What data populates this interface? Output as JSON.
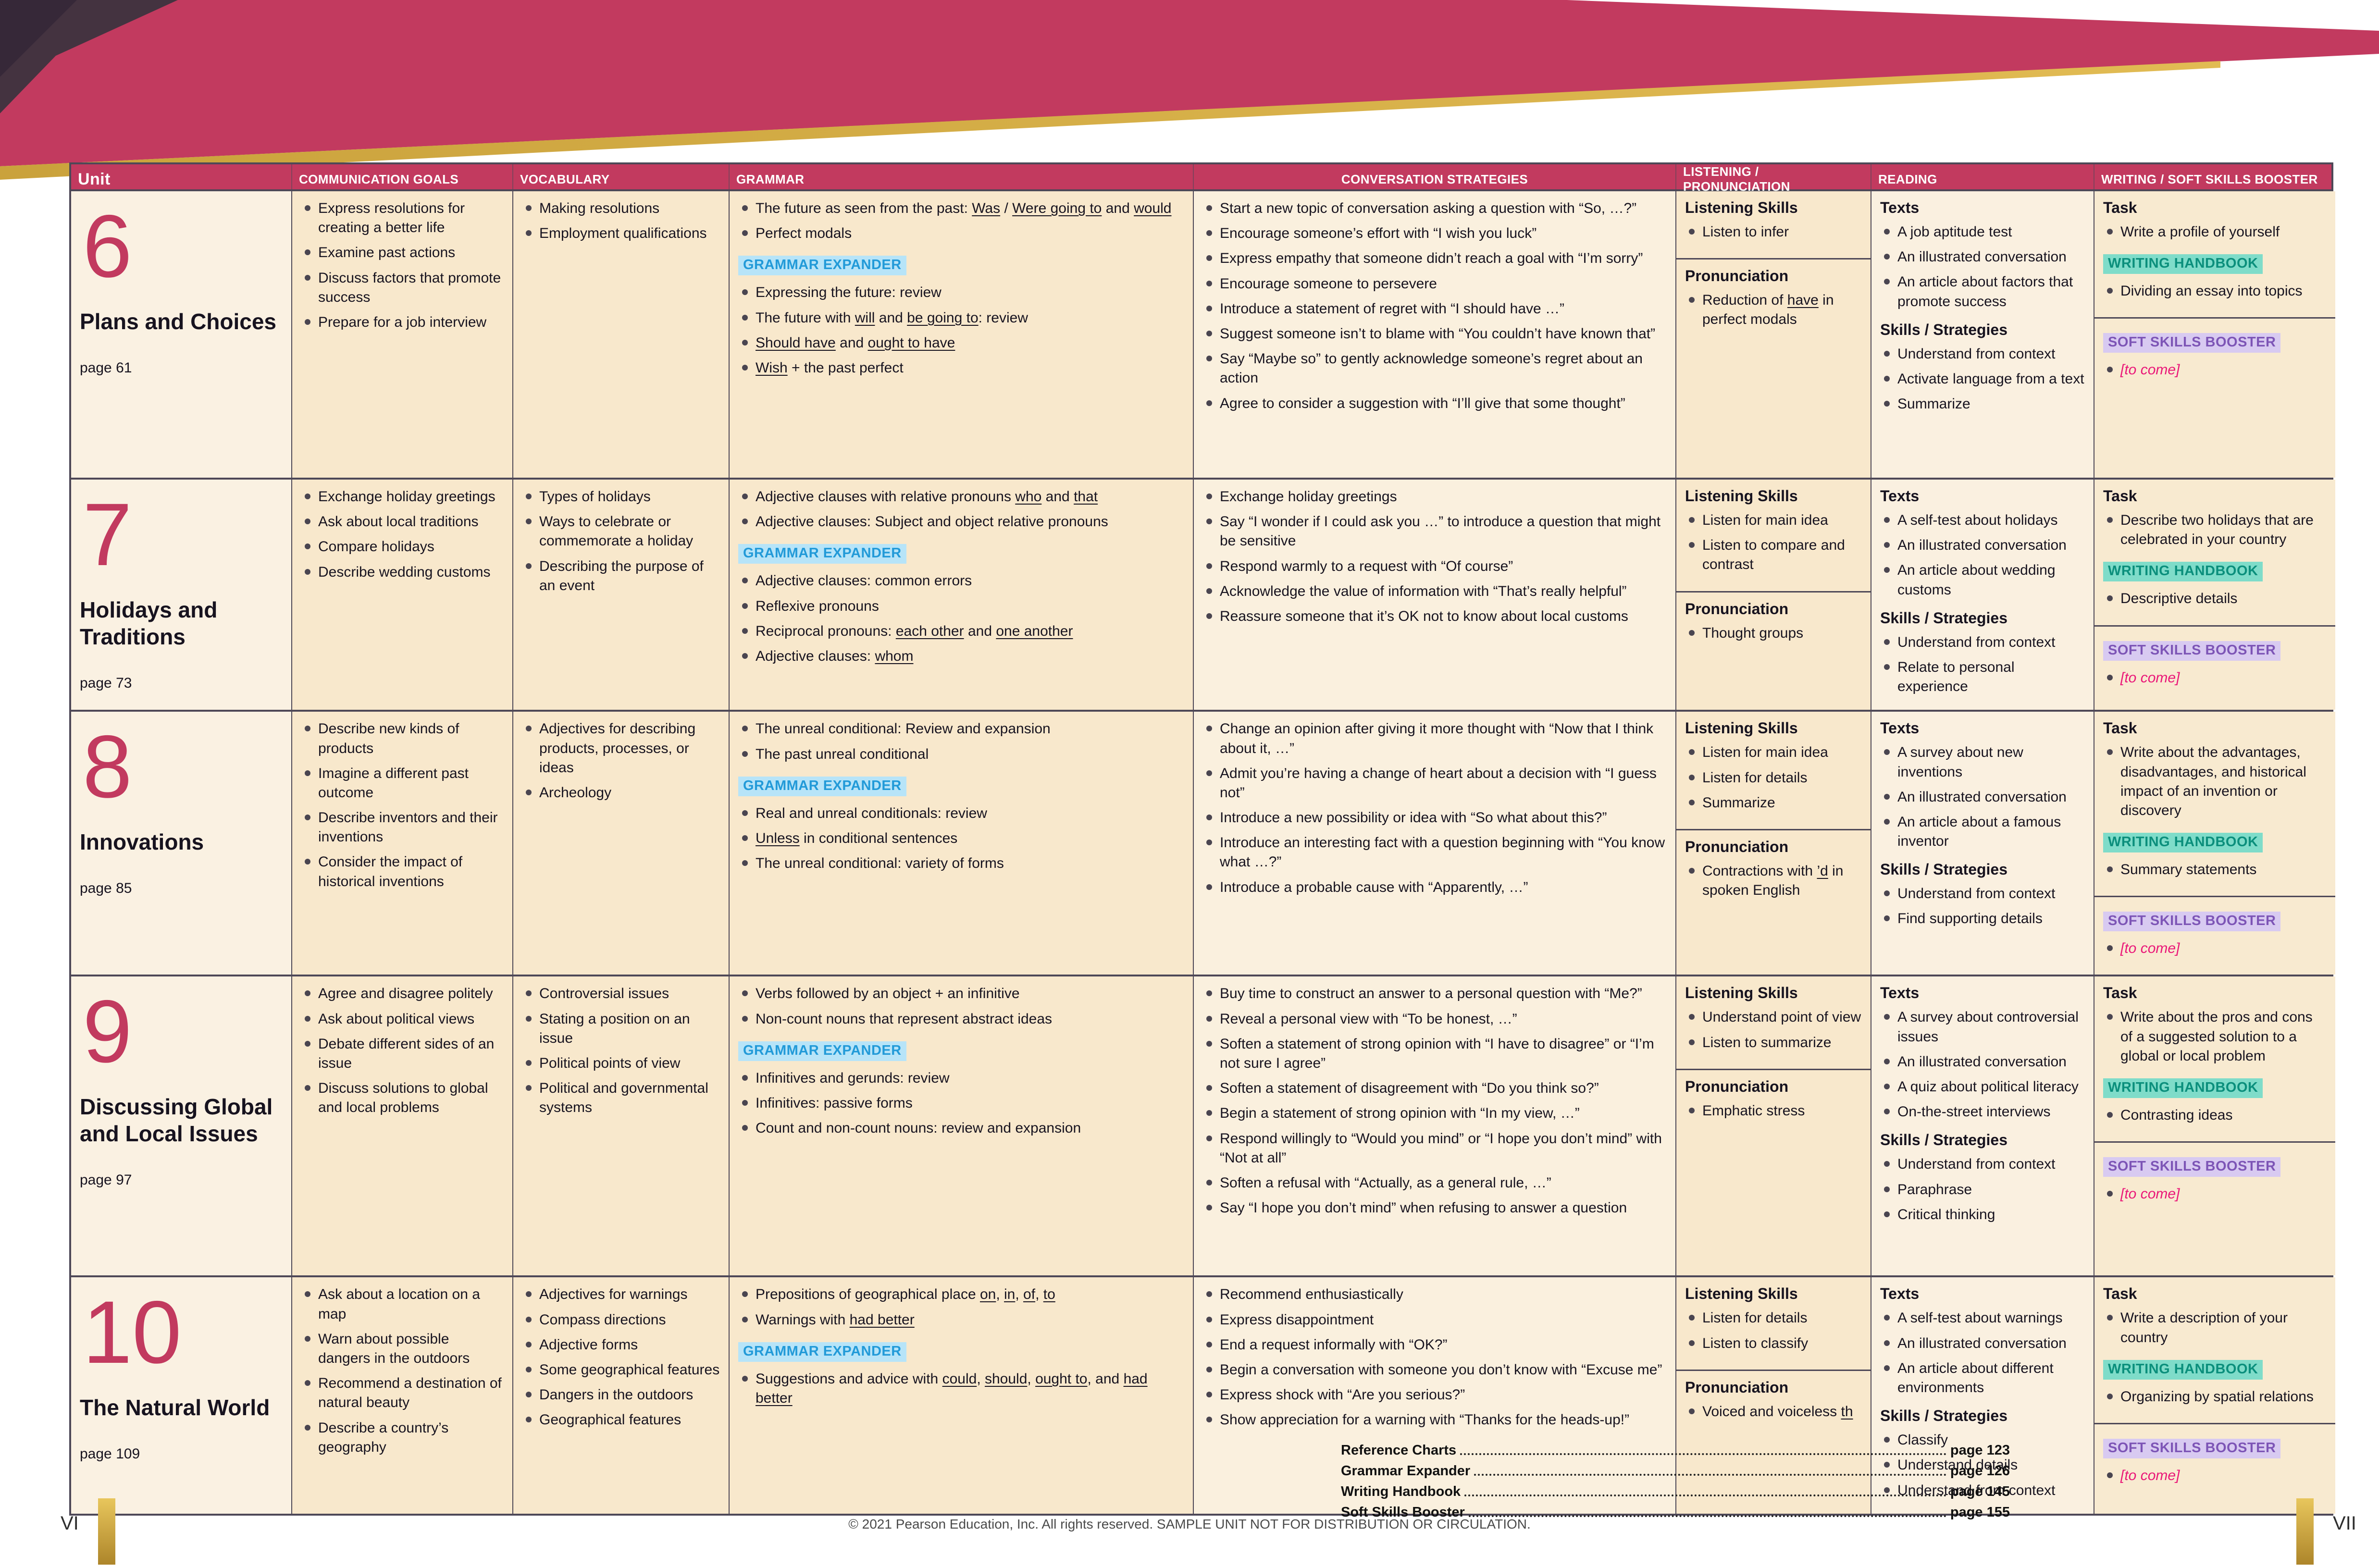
{
  "banner": {
    "colors": {
      "crimson": "#c23a5f",
      "plum": "#443340",
      "plum_dark": "#362838",
      "gold": "#d8ab3e"
    }
  },
  "badges": {
    "grammar_expander_bg": "#b7e4f8",
    "grammar_expander_text": "#229ad8",
    "writing_handbook_bg": "#7fdcc9",
    "writing_handbook_text": "#0b8f7c",
    "soft_skills_bg": "#d8caf1",
    "soft_skills_text": "#7d55b6",
    "to_come_color": "#ea1778"
  },
  "table": {
    "headers": [
      "Unit",
      "COMMUNICATION GOALS",
      "VOCABULARY",
      "GRAMMAR",
      "CONVERSATION STRATEGIES",
      "LISTENING / PRONUNCIATION",
      "READING",
      "WRITING / SOFT SKILLS BOOSTER"
    ],
    "section_labels": {
      "listening_skills": "Listening Skills",
      "pronunciation": "Pronunciation",
      "texts": "Texts",
      "skills_strategies": "Skills / Strategies",
      "task": "Task",
      "grammar_expander": "GRAMMAR EXPANDER",
      "writing_handbook": "WRITING HANDBOOK",
      "soft_skills_booster": "SOFT SKILLS BOOSTER"
    },
    "units": [
      {
        "number": "6",
        "title": "Plans and Choices",
        "page": "page 61",
        "communication_goals": [
          "Express resolutions for creating a better life",
          "Examine past actions",
          "Discuss factors that promote success",
          "Prepare for a job interview"
        ],
        "vocabulary": [
          "Making resolutions",
          "Employment qualifications"
        ],
        "grammar": [
          "The future as seen from the past: __Was__ / __Were going to__ and __would__",
          "Perfect modals"
        ],
        "grammar_expander": [
          "Expressing the future: review",
          "The future with __will__ and __be going to__: review",
          "__Should have__ and __ought to have__",
          "__Wish__ + the past perfect"
        ],
        "conversation_strategies": [
          "Start a new topic of conversation asking a question with “So, …?”",
          "Encourage someone’s effort with “I wish you luck”",
          "Express empathy that someone didn’t reach a goal with “I’m sorry”",
          "Encourage someone to persevere",
          "Introduce a statement of regret with “I should have …”",
          "Suggest someone isn’t to blame with “You couldn’t have known that”",
          "Say “Maybe so” to gently acknowledge someone’s regret about an action",
          "Agree to consider a suggestion with “I’ll give that some thought”"
        ],
        "listening_skills": [
          "Listen to infer"
        ],
        "pronunciation": [
          "Reduction of __have__ in perfect modals"
        ],
        "texts": [
          "A job aptitude test",
          "An illustrated conversation",
          "An article about factors that promote success"
        ],
        "skills_strategies": [
          "Understand from context",
          "Activate language from a text",
          "Summarize"
        ],
        "task": [
          "Write a profile of yourself"
        ],
        "writing_handbook": [
          "Dividing an essay into topics"
        ],
        "soft_skills": [
          "[to come]"
        ]
      },
      {
        "number": "7",
        "title": "Holidays and Traditions",
        "page": "page 73",
        "communication_goals": [
          "Exchange holiday greetings",
          "Ask about local traditions",
          "Compare holidays",
          "Describe wedding customs"
        ],
        "vocabulary": [
          "Types of holidays",
          "Ways to celebrate or commemorate a holiday",
          "Describing the purpose of an event"
        ],
        "grammar": [
          "Adjective clauses with relative pronouns __who__ and __that__",
          "Adjective clauses: Subject and object relative pronouns"
        ],
        "grammar_expander": [
          "Adjective clauses: common errors",
          "Reflexive pronouns",
          "Reciprocal pronouns: __each other__ and __one another__",
          "Adjective clauses: __whom__"
        ],
        "conversation_strategies": [
          "Exchange holiday greetings",
          "Say “I wonder if I could ask you …” to introduce a question that might be sensitive",
          "Respond warmly to a request with “Of course”",
          "Acknowledge the value of information with “That’s really helpful”",
          "Reassure someone that it’s OK not to know about local customs"
        ],
        "listening_skills": [
          "Listen for main idea",
          "Listen to compare and contrast"
        ],
        "pronunciation": [
          "Thought groups"
        ],
        "texts": [
          "A self-test about holidays",
          "An illustrated conversation",
          "An article about wedding customs"
        ],
        "skills_strategies": [
          "Understand from context",
          "Relate to personal experience"
        ],
        "task": [
          "Describe two holidays that are celebrated in your country"
        ],
        "writing_handbook": [
          "Descriptive details"
        ],
        "soft_skills": [
          "[to come]"
        ]
      },
      {
        "number": "8",
        "title": "Innovations",
        "page": "page 85",
        "communication_goals": [
          "Describe new kinds of products",
          "Imagine a different past outcome",
          "Describe inventors and their inventions",
          "Consider the impact of historical inventions"
        ],
        "vocabulary": [
          "Adjectives for describing products, processes, or ideas",
          "Archeology"
        ],
        "grammar": [
          "The unreal conditional: Review and expansion",
          "The past unreal conditional"
        ],
        "grammar_expander": [
          "Real and unreal conditionals: review",
          "__Unless__ in conditional sentences",
          "The unreal conditional: variety of forms"
        ],
        "conversation_strategies": [
          "Change an opinion after giving it more thought with “Now that I think about it, …”",
          "Admit you’re having a change of heart about a decision with “I guess not”",
          "Introduce a new possibility or idea with “So what about this?”",
          "Introduce an interesting fact with a question beginning with “You know what …?”",
          "Introduce a probable cause with “Apparently, …”"
        ],
        "listening_skills": [
          "Listen for main idea",
          "Listen for details",
          "Summarize"
        ],
        "pronunciation": [
          "Contractions with __’d__ in spoken English"
        ],
        "texts": [
          "A survey about new inventions",
          "An illustrated conversation",
          "An article about a famous inventor"
        ],
        "skills_strategies": [
          "Understand from context",
          "Find supporting details"
        ],
        "task": [
          "Write about the advantages, disadvantages, and historical impact of an invention or discovery"
        ],
        "writing_handbook": [
          "Summary statements"
        ],
        "soft_skills": [
          "[to come]"
        ]
      },
      {
        "number": "9",
        "title": "Discussing Global and Local Issues",
        "page": "page 97",
        "communication_goals": [
          "Agree and disagree politely",
          "Ask about political views",
          "Debate different sides of an issue",
          "Discuss solutions to global and local problems"
        ],
        "vocabulary": [
          "Controversial issues",
          "Stating a position on an issue",
          "Political points of view",
          "Political and governmental systems"
        ],
        "grammar": [
          "Verbs followed by an object + an infinitive",
          "Non-count nouns that represent abstract ideas"
        ],
        "grammar_expander": [
          "Infinitives and gerunds: review",
          "Infinitives: passive forms",
          "Count and non-count nouns: review and expansion"
        ],
        "conversation_strategies": [
          "Buy time to construct an answer to a personal question with “Me?”",
          "Reveal a personal view with “To be honest, …”",
          "Soften a statement of strong opinion with “I have to disagree” or “I’m not sure I agree”",
          "Soften a statement of disagreement with “Do you think so?”",
          "Begin a statement of strong opinion with “In my view, …”",
          "Respond willingly to “Would you mind” or “I hope you don’t mind” with “Not at all”",
          "Soften a refusal with “Actually, as a general rule, …”",
          "Say “I hope you don’t mind” when refusing to answer a question"
        ],
        "listening_skills": [
          "Understand point of view",
          "Listen to summarize"
        ],
        "pronunciation": [
          "Emphatic stress"
        ],
        "texts": [
          "A survey about controversial issues",
          "An illustrated conversation",
          "A quiz about political literacy",
          "On-the-street interviews"
        ],
        "skills_strategies": [
          "Understand from context",
          "Paraphrase",
          "Critical thinking"
        ],
        "task": [
          "Write about the pros and cons of a suggested solution to a global or local problem"
        ],
        "writing_handbook": [
          "Contrasting ideas"
        ],
        "soft_skills": [
          "[to come]"
        ]
      },
      {
        "number": "10",
        "title": "The Natural World",
        "page": "page 109",
        "communication_goals": [
          "Ask about a location on a map",
          "Warn about possible dangers in the outdoors",
          "Recommend a destination of natural beauty",
          "Describe a country’s geography"
        ],
        "vocabulary": [
          "Adjectives for warnings",
          "Compass directions",
          "Adjective forms",
          "Some geographical features",
          "Dangers in the outdoors",
          "Geographical features"
        ],
        "grammar": [
          "Prepositions of geographical place __on__, __in__, __of__, __to__",
          "Warnings with __had better__"
        ],
        "grammar_expander": [
          "Suggestions and advice with __could__, __should__, __ought to__, and __had better__"
        ],
        "conversation_strategies": [
          "Recommend enthusiastically",
          "Express disappointment",
          "End a request informally with “OK?”",
          "Begin a conversation with someone you don’t know with “Excuse me”",
          "Express shock with “Are you serious?”",
          "Show appreciation for a warning with “Thanks for the heads-up!”"
        ],
        "listening_skills": [
          "Listen for details",
          "Listen to classify"
        ],
        "pronunciation": [
          "Voiced and voiceless __th__"
        ],
        "texts": [
          "A self-test about warnings",
          "An illustrated conversation",
          "An article about different environments"
        ],
        "skills_strategies": [
          "Classify",
          "Understand details",
          "Understand from context"
        ],
        "task": [
          "Write a description of your country"
        ],
        "writing_handbook": [
          "Organizing by spatial relations"
        ],
        "soft_skills": [
          "[to come]"
        ]
      }
    ]
  },
  "footer": {
    "references": [
      {
        "label": "Reference Charts",
        "page": "page 123"
      },
      {
        "label": "Grammar Expander",
        "page": "page 126"
      },
      {
        "label": "Writing Handbook",
        "page": "page 145"
      },
      {
        "label": "Soft Skills Booster",
        "page": "page 155"
      }
    ],
    "copyright": "© 2021 Pearson Education, Inc. All rights reserved. SAMPLE UNIT NOT FOR DISTRIBUTION OR CIRCULATION.",
    "page_number_left": "VI",
    "page_number_right": "VII"
  }
}
